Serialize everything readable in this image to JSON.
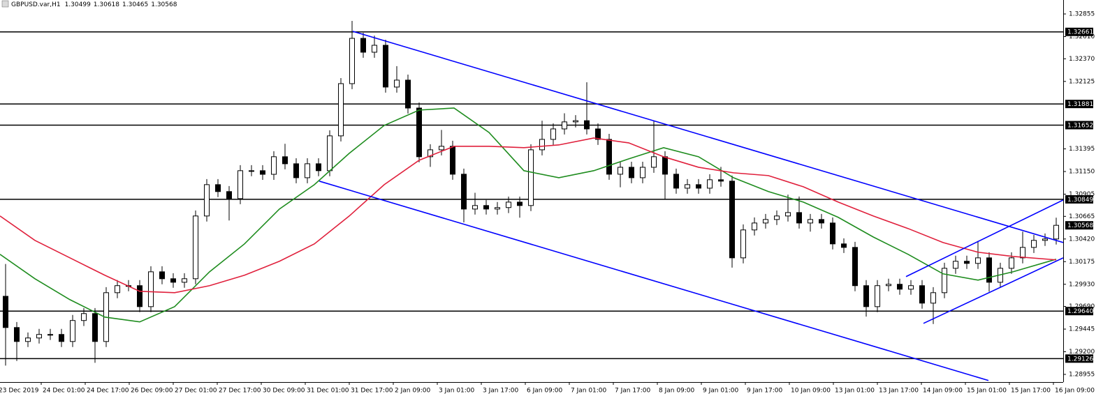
{
  "header": {
    "symbol": "GBPUSD.var,H1",
    "ohlc": [
      1.30499,
      1.30618,
      1.30465,
      1.30568
    ]
  },
  "chart_data": {
    "type": "candlestick",
    "ohlc": [
      [
        1.298,
        1.3015,
        1.2905,
        1.29462
      ],
      [
        1.29462,
        1.29522,
        1.291,
        1.29311
      ],
      [
        1.29311,
        1.29409,
        1.29251,
        1.29349
      ],
      [
        1.29349,
        1.29447,
        1.29289,
        1.29387
      ],
      [
        1.29387,
        1.29447,
        1.29327,
        1.29387
      ],
      [
        1.29387,
        1.29447,
        1.29251,
        1.29311
      ],
      [
        1.29311,
        1.29598,
        1.29251,
        1.29538
      ],
      [
        1.29538,
        1.29673,
        1.29478,
        1.29613
      ],
      [
        1.29613,
        1.29673,
        1.2908,
        1.29311
      ],
      [
        1.29311,
        1.29899,
        1.29251,
        1.29839
      ],
      [
        1.29839,
        1.29975,
        1.29779,
        1.29915
      ],
      [
        1.29915,
        1.29975,
        1.29855,
        1.29915
      ],
      [
        1.29915,
        1.29975,
        1.29628,
        1.29688
      ],
      [
        1.29688,
        1.30125,
        1.29628,
        1.30065
      ],
      [
        1.30065,
        1.30125,
        1.2993,
        1.2999
      ],
      [
        1.2999,
        1.3005,
        1.29892,
        1.29952
      ],
      [
        1.29952,
        1.3005,
        1.29892,
        1.2999
      ],
      [
        1.2999,
        1.30729,
        1.2993,
        1.30669
      ],
      [
        1.30669,
        1.31068,
        1.30609,
        1.31008
      ],
      [
        1.31008,
        1.31068,
        1.30873,
        1.30933
      ],
      [
        1.30933,
        1.30993,
        1.3062,
        1.30857
      ],
      [
        1.30857,
        1.31219,
        1.30797,
        1.31159
      ],
      [
        1.31159,
        1.31219,
        1.31099,
        1.31159
      ],
      [
        1.31159,
        1.31219,
        1.3106,
        1.3112
      ],
      [
        1.3112,
        1.3137,
        1.3106,
        1.3131
      ],
      [
        1.3131,
        1.3145,
        1.31174,
        1.31234
      ],
      [
        1.31234,
        1.31294,
        1.31023,
        1.31083
      ],
      [
        1.31083,
        1.31294,
        1.31023,
        1.31234
      ],
      [
        1.31234,
        1.31294,
        1.31099,
        1.31159
      ],
      [
        1.31159,
        1.31596,
        1.31099,
        1.31536
      ],
      [
        1.31536,
        1.32161,
        1.31476,
        1.32101
      ],
      [
        1.32101,
        1.3278,
        1.32041,
        1.32591
      ],
      [
        1.32591,
        1.32651,
        1.32381,
        1.32441
      ],
      [
        1.32441,
        1.3262,
        1.32381,
        1.32516
      ],
      [
        1.32516,
        1.32576,
        1.32004,
        1.32064
      ],
      [
        1.32064,
        1.3229,
        1.32004,
        1.32139
      ],
      [
        1.32139,
        1.32199,
        1.31777,
        1.31837
      ],
      [
        1.31837,
        1.31897,
        1.3125,
        1.3131
      ],
      [
        1.3131,
        1.31445,
        1.312,
        1.31385
      ],
      [
        1.31385,
        1.316,
        1.31325,
        1.31423
      ],
      [
        1.31423,
        1.31483,
        1.31061,
        1.31121
      ],
      [
        1.31121,
        1.31181,
        1.306,
        1.30744
      ],
      [
        1.30744,
        1.3092,
        1.30684,
        1.30782
      ],
      [
        1.30782,
        1.30842,
        1.30684,
        1.30744
      ],
      [
        1.30744,
        1.3082,
        1.30684,
        1.3076
      ],
      [
        1.3076,
        1.30879,
        1.307,
        1.30819
      ],
      [
        1.30819,
        1.30879,
        1.3065,
        1.30782
      ],
      [
        1.30782,
        1.31445,
        1.30722,
        1.31385
      ],
      [
        1.31385,
        1.317,
        1.31325,
        1.31498
      ],
      [
        1.31498,
        1.31671,
        1.31438,
        1.31611
      ],
      [
        1.31611,
        1.3178,
        1.31551,
        1.31687
      ],
      [
        1.31687,
        1.3176,
        1.31627,
        1.317
      ],
      [
        1.317,
        1.32116,
        1.31551,
        1.31611
      ],
      [
        1.31611,
        1.31671,
        1.31438,
        1.31498
      ],
      [
        1.31498,
        1.31558,
        1.31061,
        1.31121
      ],
      [
        1.31121,
        1.31256,
        1.3098,
        1.31196
      ],
      [
        1.31196,
        1.31256,
        1.31023,
        1.31083
      ],
      [
        1.31083,
        1.31256,
        1.31023,
        1.31196
      ],
      [
        1.31196,
        1.317,
        1.31136,
        1.3131
      ],
      [
        1.3131,
        1.3137,
        1.3085,
        1.31121
      ],
      [
        1.31121,
        1.31181,
        1.3091,
        1.3097
      ],
      [
        1.3097,
        1.31068,
        1.3091,
        1.31008
      ],
      [
        1.31008,
        1.31068,
        1.3091,
        1.3097
      ],
      [
        1.3097,
        1.31121,
        1.3091,
        1.31061
      ],
      [
        1.31061,
        1.312,
        1.30986,
        1.31046
      ],
      [
        1.31046,
        1.31106,
        1.3011,
        1.30216
      ],
      [
        1.30216,
        1.30578,
        1.30156,
        1.30518
      ],
      [
        1.30518,
        1.30653,
        1.30458,
        1.30593
      ],
      [
        1.30593,
        1.30691,
        1.30533,
        1.30631
      ],
      [
        1.30631,
        1.30729,
        1.30571,
        1.30669
      ],
      [
        1.30669,
        1.309,
        1.30609,
        1.30706
      ],
      [
        1.30706,
        1.3088,
        1.30533,
        1.30593
      ],
      [
        1.30593,
        1.30691,
        1.305,
        1.30631
      ],
      [
        1.30631,
        1.30691,
        1.30533,
        1.30593
      ],
      [
        1.30593,
        1.30653,
        1.30307,
        1.30367
      ],
      [
        1.30367,
        1.30427,
        1.30269,
        1.30329
      ],
      [
        1.30329,
        1.30389,
        1.29855,
        1.29915
      ],
      [
        1.29915,
        1.29975,
        1.2958,
        1.29688
      ],
      [
        1.29688,
        1.29975,
        1.29628,
        1.29915
      ],
      [
        1.29915,
        1.2999,
        1.29855,
        1.2993
      ],
      [
        1.2993,
        1.2999,
        1.29817,
        1.29877
      ],
      [
        1.29877,
        1.29975,
        1.29817,
        1.29915
      ],
      [
        1.29915,
        1.29975,
        1.29666,
        1.29726
      ],
      [
        1.29726,
        1.29899,
        1.295,
        1.29839
      ],
      [
        1.29839,
        1.30163,
        1.29779,
        1.30103
      ],
      [
        1.30103,
        1.30239,
        1.30043,
        1.30179
      ],
      [
        1.30179,
        1.30239,
        1.30096,
        1.30156
      ],
      [
        1.30156,
        1.304,
        1.30096,
        1.30216
      ],
      [
        1.30216,
        1.30276,
        1.2985,
        1.29952
      ],
      [
        1.29952,
        1.30163,
        1.29892,
        1.30103
      ],
      [
        1.30103,
        1.30276,
        1.30043,
        1.30216
      ],
      [
        1.30216,
        1.305,
        1.30156,
        1.30329
      ],
      [
        1.30329,
        1.30465,
        1.30269,
        1.30405
      ],
      [
        1.30405,
        1.3048,
        1.30345,
        1.3042
      ],
      [
        1.3042,
        1.3065,
        1.3036,
        1.30568
      ]
    ],
    "bull_color": "#ffffff",
    "bear_color": "#000000",
    "wick_color": "#000000",
    "xlim": [
      -0.5,
      94.625
    ],
    "ylim": [
      1.28872,
      1.33006
    ],
    "yticks": [
      {
        "value": 1.32855,
        "label": "1.32855"
      },
      {
        "value": 1.3261,
        "label": "1.32610"
      },
      {
        "value": 1.3237,
        "label": "1.32370"
      },
      {
        "value": 1.32125,
        "label": "1.32125"
      },
      {
        "value": 1.31395,
        "label": "1.31395"
      },
      {
        "value": 1.3115,
        "label": "1.31150"
      },
      {
        "value": 1.30905,
        "label": "1.30905"
      },
      {
        "value": 1.30665,
        "label": "1.30665"
      },
      {
        "value": 1.3042,
        "label": "1.30420"
      },
      {
        "value": 1.30175,
        "label": "1.30175"
      },
      {
        "value": 1.2993,
        "label": "1.29930"
      },
      {
        "value": 1.2969,
        "label": "1.29690"
      },
      {
        "value": 1.29445,
        "label": "1.29445"
      },
      {
        "value": 1.292,
        "label": "1.29200"
      },
      {
        "value": 1.28955,
        "label": "1.28955"
      }
    ],
    "xticks": [
      {
        "value": -0.75,
        "label": "23 Dec 2019"
      },
      {
        "value": 3.1875,
        "label": "24 Dec 01:00"
      },
      {
        "value": 7.125,
        "label": "24 Dec 17:00"
      },
      {
        "value": 11.0625,
        "label": "26 Dec 09:00"
      },
      {
        "value": 15,
        "label": "27 Dec 01:00"
      },
      {
        "value": 18.9375,
        "label": "27 Dec 17:00"
      },
      {
        "value": 22.875,
        "label": "30 Dec 09:00"
      },
      {
        "value": 26.8125,
        "label": "31 Dec 01:00"
      },
      {
        "value": 30.75,
        "label": "31 Dec 17:00"
      },
      {
        "value": 34.6875,
        "label": "2 Jan 09:00"
      },
      {
        "value": 38.625,
        "label": "3 Jan 01:00"
      },
      {
        "value": 42.5625,
        "label": "3 Jan 17:00"
      },
      {
        "value": 46.5,
        "label": "6 Jan 09:00"
      },
      {
        "value": 50.4375,
        "label": "7 Jan 01:00"
      },
      {
        "value": 54.375,
        "label": "7 Jan 17:00"
      },
      {
        "value": 58.3125,
        "label": "8 Jan 09:00"
      },
      {
        "value": 62.25,
        "label": "9 Jan 01:00"
      },
      {
        "value": 66.1875,
        "label": "9 Jan 17:00"
      },
      {
        "value": 70.125,
        "label": "10 Jan 09:00"
      },
      {
        "value": 74.0625,
        "label": "13 Jan 01:00"
      },
      {
        "value": 78,
        "label": "13 Jan 17:00"
      },
      {
        "value": 81.9375,
        "label": "14 Jan 09:00"
      },
      {
        "value": 85.875,
        "label": "15 Jan 01:00"
      },
      {
        "value": 89.8125,
        "label": "15 Jan 17:00"
      },
      {
        "value": 93.75,
        "label": "16 Jan 09:00"
      }
    ],
    "lines": [
      {
        "color": "#1e8c1e",
        "x": [
          -0.5,
          2.625,
          5.75,
          8.875,
          12,
          15.125,
          18.25,
          21.375,
          24.5,
          27.625,
          30.75,
          33.875,
          37,
          40.125,
          43.25,
          46.375,
          49.5,
          52.625,
          55.75,
          58.875,
          62,
          65.125,
          68.25,
          71.375,
          74.5,
          77.625,
          80.75,
          83.875,
          87,
          90.125,
          94
        ],
        "values": [
          1.30254,
          1.2999,
          1.29764,
          1.29575,
          1.29523,
          1.29688,
          1.30065,
          1.30367,
          1.30744,
          1.31008,
          1.31347,
          1.31649,
          1.31815,
          1.31837,
          1.31573,
          1.31159,
          1.31083,
          1.31159,
          1.31287,
          1.31408,
          1.3131,
          1.31083,
          1.30933,
          1.30819,
          1.30654,
          1.30442,
          1.30254,
          1.30043,
          1.29975,
          1.30065,
          1.30201
        ]
      },
      {
        "color": "#e0203c",
        "x": [
          -0.5,
          2.625,
          5.75,
          8.875,
          12,
          15.125,
          18.25,
          21.375,
          24.5,
          27.625,
          30.75,
          33.875,
          37,
          40.125,
          43.25,
          46.375,
          49.5,
          52.625,
          55.75,
          58.875,
          62,
          65.125,
          68.25,
          71.375,
          74.5,
          77.625,
          80.75,
          83.875,
          87,
          90.125,
          94
        ],
        "values": [
          1.30669,
          1.30405,
          1.30216,
          1.30028,
          1.29854,
          1.29839,
          1.29915,
          1.30028,
          1.30179,
          1.30367,
          1.30669,
          1.31008,
          1.31272,
          1.31423,
          1.31423,
          1.31408,
          1.31438,
          1.31513,
          1.3146,
          1.3131,
          1.31196,
          1.31136,
          1.31106,
          1.30985,
          1.30819,
          1.30669,
          1.30533,
          1.30382,
          1.30277,
          1.30231,
          1.30194
        ]
      }
    ],
    "trendlines": [
      {
        "color": "#0000ff",
        "x": [
          31.0625,
          94.625
        ],
        "y": [
          1.32667,
          1.30382
        ]
      },
      {
        "color": "#0000ff",
        "x": [
          28.0625,
          87.9375
        ],
        "y": [
          1.31046,
          1.28889
        ]
      },
      {
        "color": "#0000ff",
        "x": [
          80.5625,
          94.625
        ],
        "y": [
          1.30013,
          1.30842
        ]
      },
      {
        "color": "#0000ff",
        "x": [
          82.125,
          94.625
        ],
        "y": [
          1.29507,
          1.30216
        ]
      }
    ],
    "levels": [
      {
        "value": 1.32661,
        "label": "1.32661"
      },
      {
        "value": 1.31881,
        "label": "1.31881"
      },
      {
        "value": 1.31652,
        "label": "1.31652"
      },
      {
        "value": 1.30849,
        "label": "1.30849"
      },
      {
        "value": 1.2964,
        "label": "1.29640"
      },
      {
        "value": 1.29126,
        "label": "1.29126"
      }
    ],
    "level_color": "#000000",
    "current_price": {
      "value": 1.30568,
      "label": "1.30568"
    }
  }
}
